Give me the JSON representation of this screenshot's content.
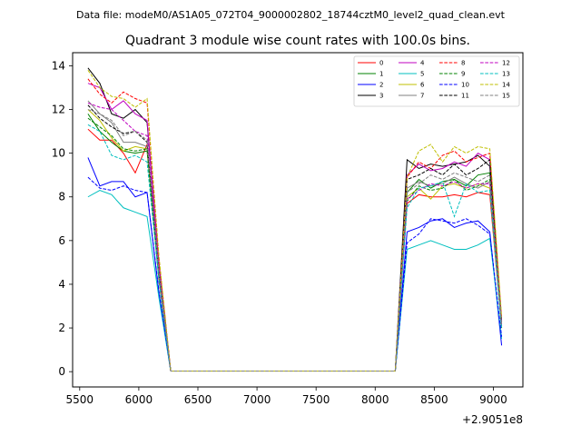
{
  "header": {
    "suptitle": "Data file: modeM0/AS1A05_072T04_9000002802_18744cztM0_level2_quad_clean.evt"
  },
  "chart_data": {
    "type": "line",
    "title": "Quadrant 3 module wise count rates with 100.0s bins.",
    "xlabel": "",
    "ylabel": "",
    "x_offset_text": "+2.9051e8",
    "xlim": [
      5440,
      9250
    ],
    "ylim": [
      -0.7,
      14.6
    ],
    "x_ticks": [
      5500,
      6000,
      6500,
      7000,
      7500,
      8000,
      8500,
      9000
    ],
    "y_ticks": [
      0,
      2,
      4,
      6,
      8,
      10,
      12,
      14
    ],
    "grid": false,
    "legend_placement": "top-right",
    "x": [
      5570,
      5670,
      5770,
      5870,
      5970,
      6070,
      6170,
      6270,
      6370,
      6470,
      6570,
      6670,
      6770,
      6870,
      6970,
      7070,
      7170,
      7270,
      7370,
      7470,
      7570,
      7670,
      7770,
      7870,
      7970,
      8070,
      8170,
      8270,
      8370,
      8470,
      8570,
      8670,
      8770,
      8870,
      8970,
      9070
    ],
    "series": [
      {
        "name": "0",
        "color": "#ff0000",
        "dash": "solid",
        "values": [
          11.1,
          10.6,
          10.6,
          10.0,
          9.1,
          10.4,
          4.2,
          0.03,
          0.03,
          0.03,
          0.03,
          0.03,
          0.03,
          0.03,
          0.03,
          0.03,
          0.03,
          0.03,
          0.03,
          0.03,
          0.03,
          0.03,
          0.03,
          0.03,
          0.03,
          0.03,
          0.03,
          7.7,
          8.1,
          8.0,
          8.0,
          8.1,
          8.0,
          8.2,
          8.1,
          2.0
        ]
      },
      {
        "name": "1",
        "color": "#008000",
        "dash": "solid",
        "values": [
          11.8,
          11.0,
          10.5,
          10.1,
          10.0,
          10.1,
          4.3,
          0.03,
          0.03,
          0.03,
          0.03,
          0.03,
          0.03,
          0.03,
          0.03,
          0.03,
          0.03,
          0.03,
          0.03,
          0.03,
          0.03,
          0.03,
          0.03,
          0.03,
          0.03,
          0.03,
          0.03,
          8.2,
          8.8,
          8.4,
          8.7,
          8.8,
          8.5,
          9.0,
          9.1,
          2.1
        ]
      },
      {
        "name": "2",
        "color": "#0000ff",
        "dash": "solid",
        "values": [
          9.8,
          8.5,
          8.7,
          8.7,
          8.0,
          8.2,
          3.6,
          0.03,
          0.03,
          0.03,
          0.03,
          0.03,
          0.03,
          0.03,
          0.03,
          0.03,
          0.03,
          0.03,
          0.03,
          0.03,
          0.03,
          0.03,
          0.03,
          0.03,
          0.03,
          0.03,
          0.03,
          6.4,
          6.6,
          6.9,
          7.0,
          6.6,
          6.8,
          6.9,
          6.4,
          1.2
        ]
      },
      {
        "name": "3",
        "color": "#000000",
        "dash": "solid",
        "values": [
          13.9,
          13.2,
          11.8,
          11.6,
          12.0,
          11.4,
          5.0,
          0.03,
          0.03,
          0.03,
          0.03,
          0.03,
          0.03,
          0.03,
          0.03,
          0.03,
          0.03,
          0.03,
          0.03,
          0.03,
          0.03,
          0.03,
          0.03,
          0.03,
          0.03,
          0.03,
          0.03,
          9.7,
          9.3,
          9.5,
          9.4,
          9.5,
          9.6,
          9.9,
          9.4,
          2.2
        ]
      },
      {
        "name": "4",
        "color": "#bf00bf",
        "dash": "solid",
        "values": [
          13.2,
          13.0,
          12.0,
          12.4,
          11.8,
          11.5,
          5.0,
          0.03,
          0.03,
          0.03,
          0.03,
          0.03,
          0.03,
          0.03,
          0.03,
          0.03,
          0.03,
          0.03,
          0.03,
          0.03,
          0.03,
          0.03,
          0.03,
          0.03,
          0.03,
          0.03,
          0.03,
          9.0,
          9.5,
          9.2,
          9.3,
          9.6,
          9.4,
          10.0,
          9.7,
          2.3
        ]
      },
      {
        "name": "5",
        "color": "#00bfbf",
        "dash": "solid",
        "values": [
          8.0,
          8.3,
          8.1,
          7.5,
          7.3,
          7.1,
          3.4,
          0.03,
          0.03,
          0.03,
          0.03,
          0.03,
          0.03,
          0.03,
          0.03,
          0.03,
          0.03,
          0.03,
          0.03,
          0.03,
          0.03,
          0.03,
          0.03,
          0.03,
          0.03,
          0.03,
          0.03,
          5.6,
          5.8,
          6.0,
          5.8,
          5.6,
          5.6,
          5.8,
          6.1,
          1.5
        ]
      },
      {
        "name": "6",
        "color": "#bfbf00",
        "dash": "solid",
        "values": [
          12.0,
          11.5,
          10.7,
          10.1,
          10.3,
          10.2,
          4.4,
          0.03,
          0.03,
          0.03,
          0.03,
          0.03,
          0.03,
          0.03,
          0.03,
          0.03,
          0.03,
          0.03,
          0.03,
          0.03,
          0.03,
          0.03,
          0.03,
          0.03,
          0.03,
          0.03,
          0.03,
          8.0,
          8.4,
          7.9,
          8.5,
          8.6,
          8.4,
          8.6,
          8.4,
          2.0
        ]
      },
      {
        "name": "7",
        "color": "#808080",
        "dash": "solid",
        "values": [
          12.4,
          11.8,
          11.4,
          10.5,
          10.5,
          10.3,
          4.5,
          0.03,
          0.03,
          0.03,
          0.03,
          0.03,
          0.03,
          0.03,
          0.03,
          0.03,
          0.03,
          0.03,
          0.03,
          0.03,
          0.03,
          0.03,
          0.03,
          0.03,
          0.03,
          0.03,
          0.03,
          8.4,
          8.7,
          8.5,
          8.6,
          8.9,
          8.6,
          8.4,
          8.7,
          2.1
        ]
      },
      {
        "name": "8",
        "color": "#ff0000",
        "dash": "dashed",
        "values": [
          13.4,
          12.7,
          12.3,
          12.8,
          12.5,
          12.3,
          5.2,
          0.03,
          0.03,
          0.03,
          0.03,
          0.03,
          0.03,
          0.03,
          0.03,
          0.03,
          0.03,
          0.03,
          0.03,
          0.03,
          0.03,
          0.03,
          0.03,
          0.03,
          0.03,
          0.03,
          0.03,
          8.9,
          9.6,
          9.3,
          9.9,
          10.1,
          9.6,
          9.8,
          10.0,
          2.4
        ]
      },
      {
        "name": "9",
        "color": "#008000",
        "dash": "dashed",
        "values": [
          11.6,
          11.2,
          10.8,
          10.2,
          10.1,
          10.2,
          4.4,
          0.03,
          0.03,
          0.03,
          0.03,
          0.03,
          0.03,
          0.03,
          0.03,
          0.03,
          0.03,
          0.03,
          0.03,
          0.03,
          0.03,
          0.03,
          0.03,
          0.03,
          0.03,
          0.03,
          0.03,
          7.8,
          8.5,
          8.3,
          8.4,
          8.8,
          8.3,
          8.5,
          8.8,
          2.0
        ]
      },
      {
        "name": "10",
        "color": "#0000ff",
        "dash": "dashed",
        "values": [
          8.9,
          8.4,
          8.3,
          8.5,
          8.3,
          8.2,
          3.7,
          0.03,
          0.03,
          0.03,
          0.03,
          0.03,
          0.03,
          0.03,
          0.03,
          0.03,
          0.03,
          0.03,
          0.03,
          0.03,
          0.03,
          0.03,
          0.03,
          0.03,
          0.03,
          0.03,
          0.03,
          5.9,
          6.3,
          7.0,
          6.9,
          6.8,
          7.0,
          6.7,
          6.3,
          1.6
        ]
      },
      {
        "name": "11",
        "color": "#000000",
        "dash": "dashed",
        "values": [
          12.2,
          11.6,
          11.2,
          10.9,
          11.0,
          10.5,
          4.6,
          0.03,
          0.03,
          0.03,
          0.03,
          0.03,
          0.03,
          0.03,
          0.03,
          0.03,
          0.03,
          0.03,
          0.03,
          0.03,
          0.03,
          0.03,
          0.03,
          0.03,
          0.03,
          0.03,
          0.03,
          8.8,
          9.0,
          9.3,
          9.0,
          9.5,
          9.0,
          9.3,
          9.7,
          2.3
        ]
      },
      {
        "name": "12",
        "color": "#bf00bf",
        "dash": "dashed",
        "values": [
          12.3,
          12.1,
          12.0,
          11.5,
          11.0,
          10.8,
          4.7,
          0.03,
          0.03,
          0.03,
          0.03,
          0.03,
          0.03,
          0.03,
          0.03,
          0.03,
          0.03,
          0.03,
          0.03,
          0.03,
          0.03,
          0.03,
          0.03,
          0.03,
          0.03,
          0.03,
          0.03,
          7.9,
          8.3,
          8.6,
          8.5,
          8.7,
          8.4,
          8.6,
          8.6,
          2.1
        ]
      },
      {
        "name": "13",
        "color": "#00bfbf",
        "dash": "dashed",
        "values": [
          11.3,
          11.0,
          9.9,
          9.7,
          9.9,
          9.6,
          4.2,
          0.03,
          0.03,
          0.03,
          0.03,
          0.03,
          0.03,
          0.03,
          0.03,
          0.03,
          0.03,
          0.03,
          0.03,
          0.03,
          0.03,
          0.03,
          0.03,
          0.03,
          0.03,
          0.03,
          0.03,
          7.5,
          8.4,
          8.5,
          8.7,
          7.1,
          8.6,
          8.2,
          8.3,
          2.0
        ]
      },
      {
        "name": "14",
        "color": "#bfbf00",
        "dash": "dashed",
        "values": [
          13.8,
          13.0,
          12.6,
          12.5,
          12.1,
          12.5,
          5.3,
          0.03,
          0.03,
          0.03,
          0.03,
          0.03,
          0.03,
          0.03,
          0.03,
          0.03,
          0.03,
          0.03,
          0.03,
          0.03,
          0.03,
          0.03,
          0.03,
          0.03,
          0.03,
          0.03,
          0.03,
          8.9,
          10.1,
          10.4,
          9.6,
          10.3,
          10.0,
          10.3,
          10.2,
          2.5
        ]
      },
      {
        "name": "15",
        "color": "#808080",
        "dash": "dashed",
        "values": [
          12.0,
          11.8,
          11.5,
          10.8,
          11.0,
          10.6,
          4.6,
          0.03,
          0.03,
          0.03,
          0.03,
          0.03,
          0.03,
          0.03,
          0.03,
          0.03,
          0.03,
          0.03,
          0.03,
          0.03,
          0.03,
          0.03,
          0.03,
          0.03,
          0.03,
          0.03,
          0.03,
          8.2,
          8.6,
          9.0,
          8.8,
          9.1,
          8.9,
          8.7,
          9.0,
          2.2
        ]
      }
    ]
  }
}
